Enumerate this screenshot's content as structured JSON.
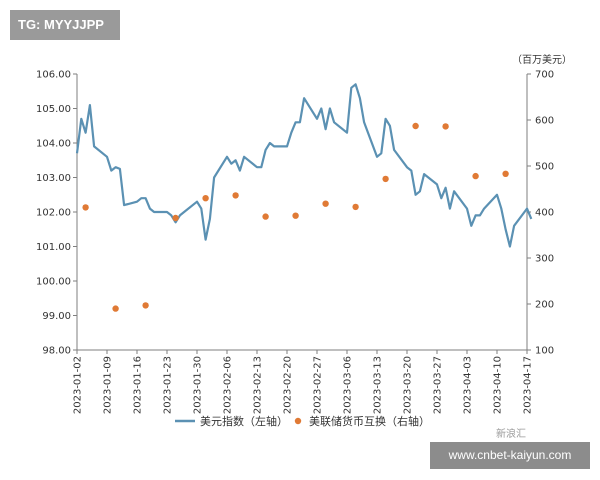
{
  "watermark": {
    "top_left": "TG: MYYJJPP",
    "bottom_right": "www.cnbet-kaiyun.com",
    "logo_text": "新浪汇"
  },
  "chart_data": {
    "type": "line+scatter",
    "title": "",
    "right_unit": "（百万美元）",
    "x_ticks": [
      "2023-01-02",
      "2023-01-09",
      "2023-01-16",
      "2023-01-23",
      "2023-01-30",
      "2023-02-06",
      "2023-02-13",
      "2023-02-20",
      "2023-02-27",
      "2023-03-06",
      "2023-03-13",
      "2023-03-20",
      "2023-03-27",
      "2023-04-03",
      "2023-04-10",
      "2023-04-17"
    ],
    "left_axis": {
      "min": 98,
      "max": 106,
      "ticks": [
        "98.00",
        "99.00",
        "100.00",
        "101.00",
        "102.00",
        "103.00",
        "104.00",
        "105.00",
        "106.00"
      ]
    },
    "right_axis": {
      "min": 100,
      "max": 700,
      "ticks": [
        "100",
        "200",
        "300",
        "400",
        "500",
        "600",
        "700"
      ]
    },
    "legend": {
      "position": "bottom",
      "line_label": "美元指数（左轴）",
      "dot_label": "美联储货币互换（右轴）"
    },
    "colors": {
      "line": "#5b91b3",
      "dots": "#e07a35",
      "axis": "#7f7f7f"
    },
    "line_series": [
      [
        "2023-01-02",
        103.7
      ],
      [
        "2023-01-03",
        104.7
      ],
      [
        "2023-01-04",
        104.3
      ],
      [
        "2023-01-05",
        105.1
      ],
      [
        "2023-01-06",
        103.9
      ],
      [
        "2023-01-09",
        103.6
      ],
      [
        "2023-01-10",
        103.2
      ],
      [
        "2023-01-11",
        103.3
      ],
      [
        "2023-01-12",
        103.25
      ],
      [
        "2023-01-13",
        102.2
      ],
      [
        "2023-01-16",
        102.3
      ],
      [
        "2023-01-17",
        102.4
      ],
      [
        "2023-01-18",
        102.4
      ],
      [
        "2023-01-19",
        102.1
      ],
      [
        "2023-01-20",
        102.0
      ],
      [
        "2023-01-23",
        102.0
      ],
      [
        "2023-01-24",
        101.9
      ],
      [
        "2023-01-25",
        101.7
      ],
      [
        "2023-01-26",
        101.9
      ],
      [
        "2023-01-27",
        102.0
      ],
      [
        "2023-01-30",
        102.3
      ],
      [
        "2023-01-31",
        102.1
      ],
      [
        "2023-02-01",
        101.2
      ],
      [
        "2023-02-02",
        101.8
      ],
      [
        "2023-02-03",
        103.0
      ],
      [
        "2023-02-06",
        103.6
      ],
      [
        "2023-02-07",
        103.4
      ],
      [
        "2023-02-08",
        103.5
      ],
      [
        "2023-02-09",
        103.2
      ],
      [
        "2023-02-10",
        103.6
      ],
      [
        "2023-02-13",
        103.3
      ],
      [
        "2023-02-14",
        103.3
      ],
      [
        "2023-02-15",
        103.8
      ],
      [
        "2023-02-16",
        104.0
      ],
      [
        "2023-02-17",
        103.9
      ],
      [
        "2023-02-20",
        103.9
      ],
      [
        "2023-02-21",
        104.3
      ],
      [
        "2023-02-22",
        104.6
      ],
      [
        "2023-02-23",
        104.6
      ],
      [
        "2023-02-24",
        105.3
      ],
      [
        "2023-02-27",
        104.7
      ],
      [
        "2023-02-28",
        105.0
      ],
      [
        "2023-03-01",
        104.4
      ],
      [
        "2023-03-02",
        105.0
      ],
      [
        "2023-03-03",
        104.6
      ],
      [
        "2023-03-06",
        104.3
      ],
      [
        "2023-03-07",
        105.6
      ],
      [
        "2023-03-08",
        105.7
      ],
      [
        "2023-03-09",
        105.3
      ],
      [
        "2023-03-10",
        104.6
      ],
      [
        "2023-03-13",
        103.6
      ],
      [
        "2023-03-14",
        103.7
      ],
      [
        "2023-03-15",
        104.7
      ],
      [
        "2023-03-16",
        104.5
      ],
      [
        "2023-03-17",
        103.8
      ],
      [
        "2023-03-20",
        103.3
      ],
      [
        "2023-03-21",
        103.2
      ],
      [
        "2023-03-22",
        102.5
      ],
      [
        "2023-03-23",
        102.6
      ],
      [
        "2023-03-24",
        103.1
      ],
      [
        "2023-03-27",
        102.8
      ],
      [
        "2023-03-28",
        102.4
      ],
      [
        "2023-03-29",
        102.7
      ],
      [
        "2023-03-30",
        102.1
      ],
      [
        "2023-03-31",
        102.6
      ],
      [
        "2023-04-03",
        102.1
      ],
      [
        "2023-04-04",
        101.6
      ],
      [
        "2023-04-05",
        101.9
      ],
      [
        "2023-04-06",
        101.9
      ],
      [
        "2023-04-07",
        102.1
      ],
      [
        "2023-04-10",
        102.5
      ],
      [
        "2023-04-11",
        102.1
      ],
      [
        "2023-04-12",
        101.5
      ],
      [
        "2023-04-13",
        101.0
      ],
      [
        "2023-04-14",
        101.6
      ],
      [
        "2023-04-17",
        102.1
      ],
      [
        "2023-04-18",
        101.8
      ]
    ],
    "scatter_series": [
      [
        "2023-01-04",
        410
      ],
      [
        "2023-01-11",
        190
      ],
      [
        "2023-01-18",
        197
      ],
      [
        "2023-01-25",
        387
      ],
      [
        "2023-02-01",
        430
      ],
      [
        "2023-02-08",
        436
      ],
      [
        "2023-02-15",
        390
      ],
      [
        "2023-02-22",
        392
      ],
      [
        "2023-03-01",
        418
      ],
      [
        "2023-03-08",
        411
      ],
      [
        "2023-03-15",
        472
      ],
      [
        "2023-03-22",
        587
      ],
      [
        "2023-03-29",
        586
      ],
      [
        "2023-04-05",
        478
      ],
      [
        "2023-04-12",
        483
      ]
    ]
  }
}
